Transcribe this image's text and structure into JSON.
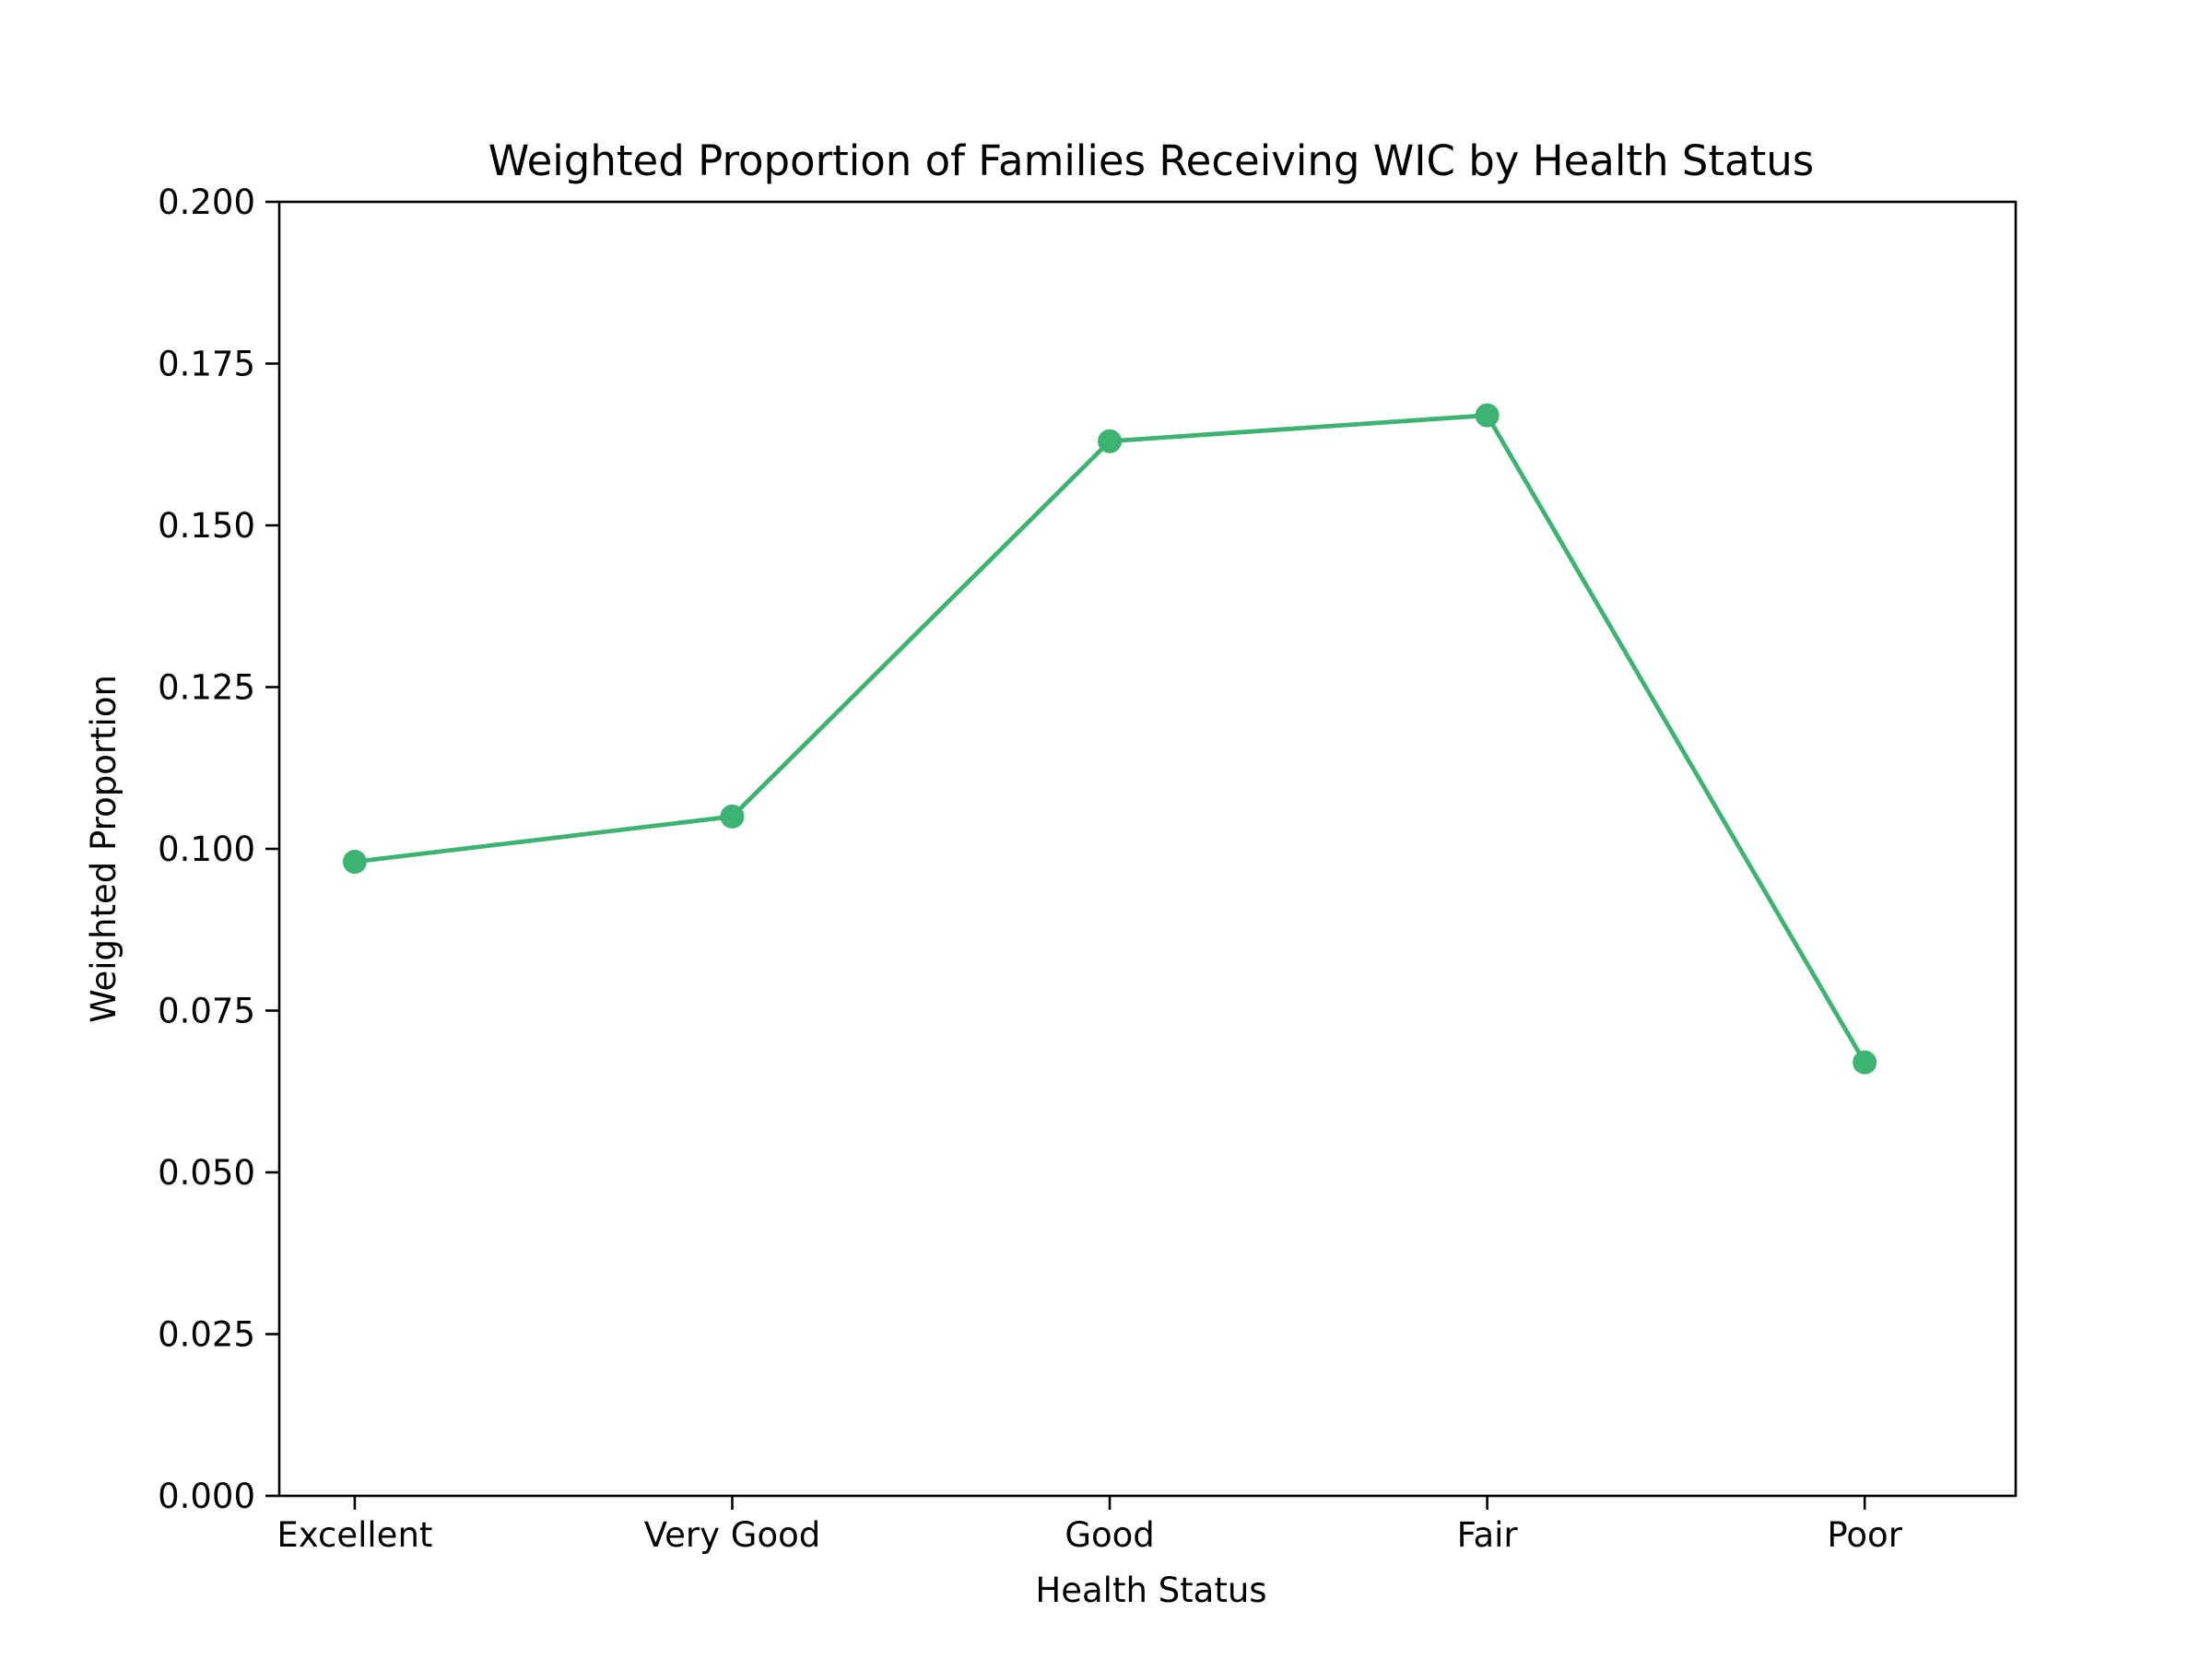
{
  "chart_data": {
    "type": "line",
    "title": "Weighted Proportion of Families Receiving WIC by Health Status",
    "xlabel": "Health Status",
    "ylabel": "Weighted Proportion",
    "categories": [
      "Excellent",
      "Very Good",
      "Good",
      "Fair",
      "Poor"
    ],
    "series": [
      {
        "values": [
          0.098,
          0.105,
          0.163,
          0.167,
          0.067
        ],
        "color": "#3cb371",
        "marker": "circle"
      }
    ],
    "ylim": [
      0,
      0.2
    ],
    "yticks": [
      0.0,
      0.025,
      0.05,
      0.075,
      0.1,
      0.125,
      0.15,
      0.175,
      0.2
    ],
    "ytick_labels": [
      "0.000",
      "0.025",
      "0.050",
      "0.075",
      "0.100",
      "0.125",
      "0.150",
      "0.175",
      "0.200"
    ],
    "grid": false,
    "legend": "none"
  }
}
